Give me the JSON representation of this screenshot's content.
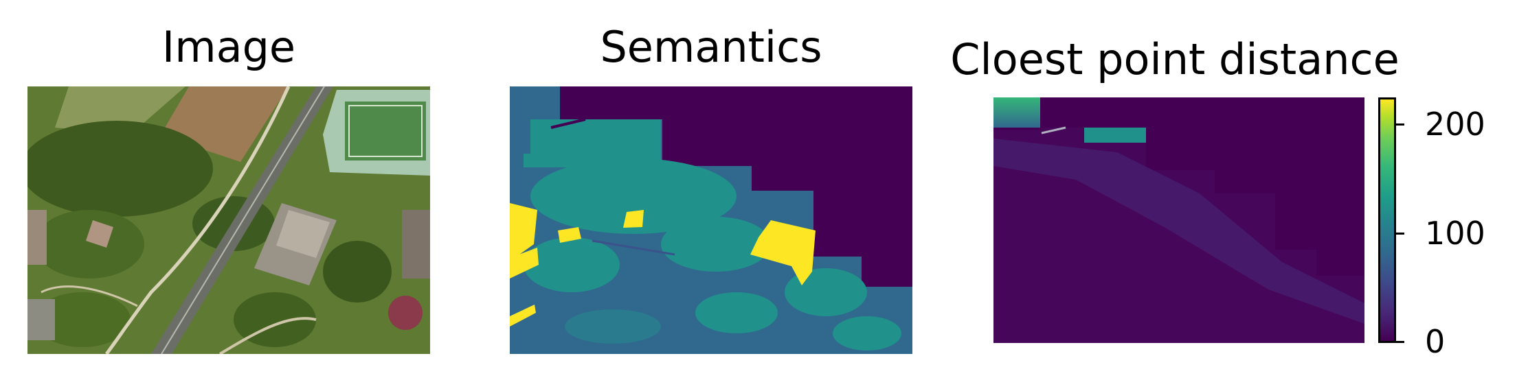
{
  "panels": {
    "image": {
      "title": "Image"
    },
    "semantics": {
      "title": "Semantics"
    },
    "distance": {
      "title": "Cloest point distance"
    }
  },
  "colorbar": {
    "colormap": "viridis",
    "range": [
      0,
      220
    ],
    "ticks": [
      {
        "value": 0,
        "label": "0"
      },
      {
        "value": 100,
        "label": "100"
      },
      {
        "value": 200,
        "label": "200"
      }
    ]
  },
  "colors": {
    "viridis_dark": "#440154",
    "viridis_blue": "#31688e",
    "viridis_teal": "#21918c",
    "viridis_yellow": "#fde725"
  }
}
